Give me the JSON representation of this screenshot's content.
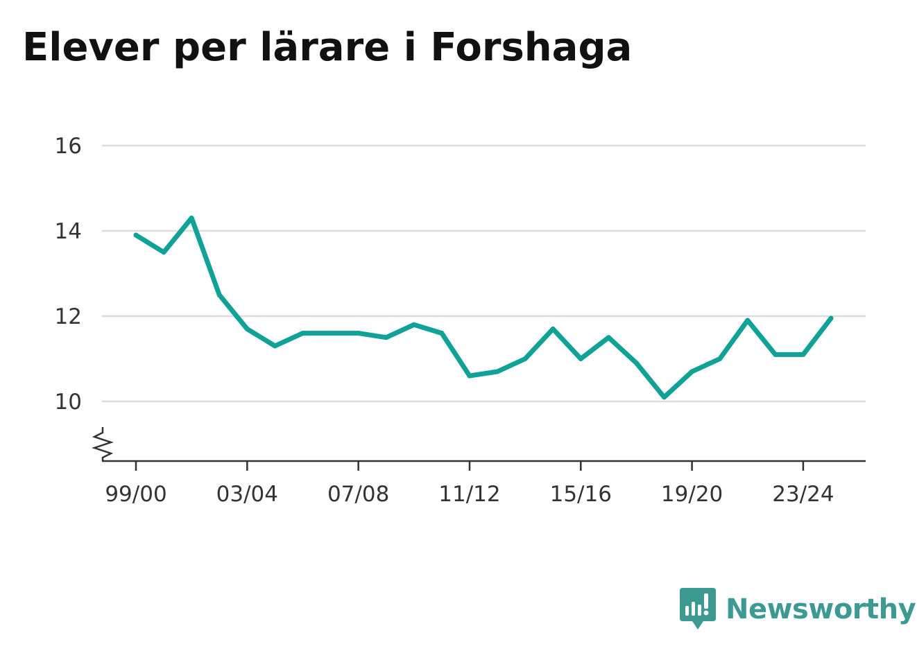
{
  "chart_data": {
    "type": "line",
    "title": "Elever per lärare i Forshaga",
    "xlabel": "",
    "ylabel": "",
    "x": [
      "99/00",
      "00/01",
      "01/02",
      "02/03",
      "03/04",
      "04/05",
      "05/06",
      "06/07",
      "07/08",
      "08/09",
      "09/10",
      "10/11",
      "11/12",
      "12/13",
      "13/14",
      "14/15",
      "15/16",
      "16/17",
      "17/18",
      "18/19",
      "19/20",
      "20/21",
      "21/22",
      "22/23",
      "23/24",
      "24/25"
    ],
    "x_tick_labels": [
      "99/00",
      "03/04",
      "07/08",
      "11/12",
      "15/16",
      "19/20",
      "23/24"
    ],
    "y_tick_labels": [
      "10",
      "12",
      "14",
      "16"
    ],
    "ylim": [
      8.6,
      16
    ],
    "y_axis_break": true,
    "grid": true,
    "series": [
      {
        "color": "#10a197",
        "values": [
          13.9,
          13.5,
          14.3,
          12.5,
          11.7,
          11.3,
          11.6,
          11.6,
          11.6,
          11.5,
          11.8,
          11.6,
          10.6,
          10.7,
          11.0,
          11.7,
          11.0,
          11.5,
          10.9,
          10.1,
          10.7,
          11.0,
          11.9,
          11.1,
          11.1,
          11.95
        ]
      }
    ]
  },
  "brand": {
    "name": "Newsworthy",
    "icon": "newsworthy-logo-icon",
    "color": "#3d9a92"
  },
  "colors": {
    "grid": "#dddddd",
    "axis": "#333333"
  }
}
